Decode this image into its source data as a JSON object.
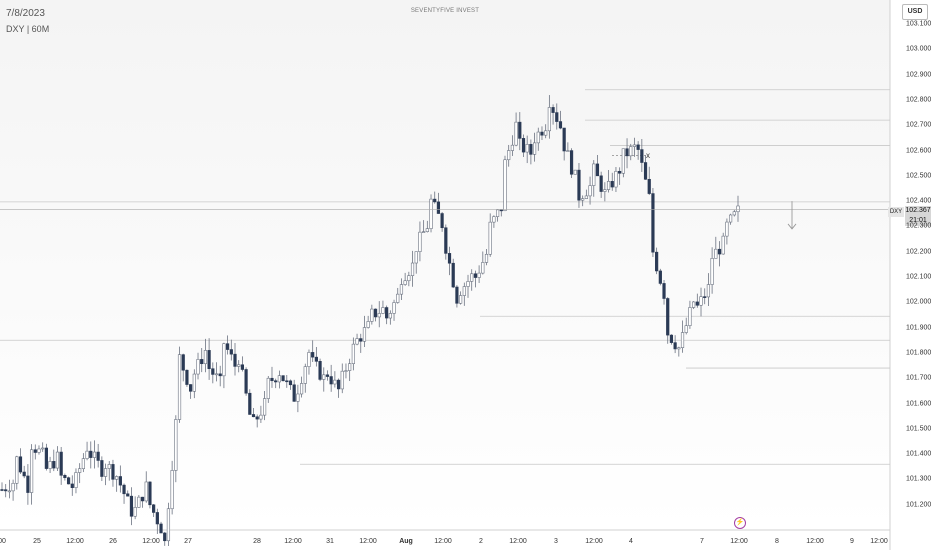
{
  "header": {
    "date": "7/8/2023",
    "symbol_interval": "DXY | 60M",
    "watermark": "SEVENTYFIVE INVEST",
    "currency": "USD"
  },
  "price_tag": {
    "symbol": "DXY",
    "price": "102.367",
    "countdown": "21:01"
  },
  "annotation_mark": "x",
  "flash_icon": "lightning-icon",
  "colors": {
    "bull": "#ffffff",
    "bear": "#2b3a55",
    "wick": "#6b7280",
    "level": "#c8c8c8",
    "axis": "#d0d0d0",
    "text": "#333333",
    "event": "#a43fa4"
  },
  "chart_data": {
    "type": "candlestick",
    "instrument": "DXY",
    "interval": "60M",
    "ylim": [
      101.1,
      103.15
    ],
    "y_ticks": [
      "103.100",
      "103.000",
      "102.900",
      "102.800",
      "102.700",
      "102.600",
      "102.500",
      "102.400",
      "102.300",
      "102.200",
      "102.100",
      "102.000",
      "101.900",
      "101.800",
      "101.700",
      "101.600",
      "101.500",
      "101.400",
      "101.300",
      "101.200"
    ],
    "x_ticks": [
      {
        "label": "00",
        "bold": false
      },
      {
        "label": "25",
        "bold": false
      },
      {
        "label": "12:00",
        "bold": false
      },
      {
        "label": "26",
        "bold": false
      },
      {
        "label": "12:00",
        "bold": false
      },
      {
        "label": "27",
        "bold": false
      },
      {
        "label": "28",
        "bold": false
      },
      {
        "label": "12:00",
        "bold": false
      },
      {
        "label": "31",
        "bold": false
      },
      {
        "label": "12:00",
        "bold": false
      },
      {
        "label": "Aug",
        "bold": true
      },
      {
        "label": "12:00",
        "bold": false
      },
      {
        "label": "2",
        "bold": false
      },
      {
        "label": "12:00",
        "bold": false
      },
      {
        "label": "3",
        "bold": false
      },
      {
        "label": "12:00",
        "bold": false
      },
      {
        "label": "4",
        "bold": false
      },
      {
        "label": "7",
        "bold": false
      },
      {
        "label": "12:00",
        "bold": false
      },
      {
        "label": "8",
        "bold": false
      },
      {
        "label": "12:00",
        "bold": false
      },
      {
        "label": "9",
        "bold": false
      },
      {
        "label": "12:00",
        "bold": false
      }
    ],
    "last_price": 102.367,
    "levels": [
      102.84,
      102.72,
      102.62,
      102.397,
      101.945,
      101.85,
      101.74,
      101.36
    ],
    "anchor_points": [
      [
        101.26,
        101.3
      ],
      [
        101.38,
        101.24
      ],
      [
        101.44,
        101.38
      ],
      [
        101.34,
        101.4
      ],
      [
        101.31,
        101.26
      ],
      [
        101.3,
        101.47
      ],
      [
        101.4,
        101.32
      ],
      [
        101.36,
        101.3
      ],
      [
        101.28,
        101.14
      ],
      [
        101.18,
        101.3
      ],
      [
        101.2,
        101.08
      ],
      [
        101.05,
        101.68
      ],
      [
        101.78,
        101.62
      ],
      [
        101.72,
        101.84
      ],
      [
        101.74,
        101.66
      ],
      [
        101.84,
        101.72
      ],
      [
        101.78,
        101.48
      ],
      [
        101.52,
        101.62
      ],
      [
        101.68,
        101.74
      ],
      [
        101.7,
        101.6
      ],
      [
        101.66,
        101.85
      ],
      [
        101.76,
        101.68
      ],
      [
        101.72,
        101.63
      ],
      [
        101.7,
        101.86
      ],
      [
        101.85,
        101.92
      ],
      [
        101.95,
        101.98
      ],
      [
        101.94,
        102.05
      ],
      [
        102.1,
        102.16
      ],
      [
        102.22,
        102.33
      ],
      [
        102.4,
        102.28
      ],
      [
        102.22,
        101.95
      ],
      [
        102.05,
        102.12
      ],
      [
        102.1,
        102.22
      ],
      [
        102.3,
        102.4
      ],
      [
        102.55,
        102.75
      ],
      [
        102.62,
        102.58
      ],
      [
        102.65,
        102.72
      ],
      [
        102.8,
        102.66
      ],
      [
        102.62,
        102.45
      ],
      [
        102.42,
        102.47
      ],
      [
        102.52,
        102.4
      ],
      [
        102.45,
        102.55
      ],
      [
        102.58,
        102.62
      ],
      [
        102.6,
        102.35
      ],
      [
        102.2,
        101.98
      ],
      [
        101.88,
        101.8
      ],
      [
        101.86,
        102.05
      ],
      [
        101.98,
        102.08
      ],
      [
        102.18,
        102.25
      ],
      [
        102.3,
        102.38
      ]
    ],
    "candle_count": 200,
    "markers": [
      {
        "type": "arrow-down",
        "price_from": 102.4,
        "price_to": 102.29
      },
      {
        "type": "x",
        "price": 102.58
      },
      {
        "type": "event-flash"
      }
    ]
  }
}
